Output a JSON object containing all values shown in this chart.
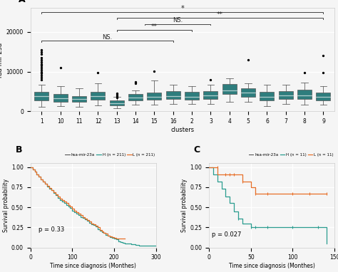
{
  "title_A": "A",
  "title_B": "B",
  "title_C": "C",
  "clusters": [
    "1",
    "10",
    "11",
    "12",
    "13",
    "14",
    "15",
    "16",
    "2",
    "3",
    "4",
    "5",
    "6",
    "7",
    "8",
    "9"
  ],
  "box_color": "#2e7d7d",
  "box_medians": [
    3800,
    3400,
    3100,
    3900,
    2100,
    3500,
    3700,
    3900,
    3700,
    4100,
    5300,
    4800,
    3700,
    4100,
    4100,
    3700
  ],
  "box_q1": [
    2700,
    2500,
    2400,
    2900,
    1500,
    2700,
    2900,
    3100,
    2900,
    3100,
    4400,
    3700,
    2800,
    3100,
    3100,
    2800
  ],
  "box_q3": [
    4900,
    4400,
    3900,
    4900,
    2800,
    4400,
    4700,
    5100,
    4900,
    5100,
    6900,
    5900,
    4900,
    5100,
    5400,
    4700
  ],
  "box_whislo": [
    1100,
    1300,
    1100,
    1500,
    800,
    1700,
    1700,
    1900,
    1900,
    1900,
    2400,
    2400,
    1400,
    1900,
    1700,
    1700
  ],
  "box_whishi": [
    6800,
    6300,
    5800,
    7000,
    3700,
    5300,
    7800,
    6800,
    6300,
    6800,
    8300,
    7000,
    6800,
    6800,
    7300,
    6300
  ],
  "outliers": {
    "0": [
      15500,
      15000,
      14500,
      13500,
      13000,
      12500,
      12000,
      11500,
      11000,
      10500,
      10000,
      9500,
      9000,
      8500,
      8000
    ],
    "1": [
      11000
    ],
    "2": [],
    "3": [
      9800
    ],
    "4": [
      4500,
      4200,
      3800,
      3500
    ],
    "5": [
      7500,
      7000
    ],
    "6": [
      10200
    ],
    "7": [],
    "8": [],
    "9": [
      8000
    ],
    "10": [],
    "11": [
      13000
    ],
    "12": [],
    "13": [],
    "14": [
      9800
    ],
    "15": [
      14000,
      9800
    ]
  },
  "ylabel_A": "hsa-mir-23a",
  "xlabel_A": "clusters",
  "ylim_A": [
    0,
    26000
  ],
  "yticks_A": [
    0,
    10000,
    20000
  ],
  "ytick_labels_A": [
    "0",
    "10000",
    "20000"
  ],
  "green_color": "#2a9d8f",
  "orange_color": "#e76f28",
  "survival_B_green_x": [
    0,
    5,
    10,
    15,
    20,
    25,
    30,
    35,
    40,
    45,
    50,
    55,
    60,
    65,
    70,
    75,
    80,
    85,
    90,
    95,
    100,
    105,
    110,
    115,
    120,
    125,
    130,
    135,
    140,
    145,
    150,
    155,
    160,
    165,
    170,
    175,
    180,
    185,
    190,
    195,
    200,
    205,
    210,
    215,
    220,
    225,
    230,
    240,
    250,
    260,
    280,
    300
  ],
  "survival_B_green_y": [
    1.0,
    0.97,
    0.94,
    0.91,
    0.88,
    0.85,
    0.82,
    0.79,
    0.76,
    0.73,
    0.71,
    0.68,
    0.65,
    0.62,
    0.59,
    0.57,
    0.55,
    0.53,
    0.51,
    0.49,
    0.46,
    0.44,
    0.42,
    0.4,
    0.38,
    0.37,
    0.35,
    0.33,
    0.31,
    0.29,
    0.28,
    0.26,
    0.23,
    0.21,
    0.19,
    0.18,
    0.16,
    0.15,
    0.13,
    0.12,
    0.11,
    0.1,
    0.08,
    0.07,
    0.06,
    0.05,
    0.05,
    0.04,
    0.03,
    0.02,
    0.02,
    0.02
  ],
  "survival_B_orange_x": [
    0,
    5,
    10,
    15,
    20,
    25,
    30,
    35,
    40,
    45,
    50,
    55,
    60,
    65,
    70,
    75,
    80,
    85,
    90,
    95,
    100,
    105,
    110,
    115,
    120,
    125,
    130,
    135,
    140,
    145,
    150,
    155,
    160,
    165,
    170,
    175,
    180,
    185,
    190,
    195,
    200,
    205,
    210,
    215,
    220,
    225
  ],
  "survival_B_orange_y": [
    1.0,
    0.97,
    0.94,
    0.91,
    0.88,
    0.85,
    0.82,
    0.79,
    0.77,
    0.74,
    0.71,
    0.69,
    0.66,
    0.63,
    0.61,
    0.59,
    0.57,
    0.55,
    0.53,
    0.51,
    0.48,
    0.46,
    0.44,
    0.42,
    0.4,
    0.38,
    0.36,
    0.34,
    0.32,
    0.3,
    0.29,
    0.27,
    0.25,
    0.22,
    0.2,
    0.18,
    0.17,
    0.15,
    0.14,
    0.13,
    0.12,
    0.11,
    0.11,
    0.11,
    0.11,
    0.11
  ],
  "pval_B": "p = 0.33",
  "legend_B": "hsa-mir-23a",
  "legend_B_H": "H (n = 211)",
  "legend_B_L": "L (n = 211)",
  "xlabel_B": "Time since diagnosis (Monthes)",
  "ylabel_B": "Survival probability",
  "xlim_B": [
    0,
    300
  ],
  "xticks_B": [
    0,
    100,
    200,
    300
  ],
  "survival_C_green_x": [
    0,
    5,
    10,
    15,
    20,
    25,
    30,
    35,
    40,
    45,
    50,
    55,
    60,
    70,
    100,
    130,
    140
  ],
  "survival_C_green_y": [
    1.0,
    0.91,
    0.82,
    0.73,
    0.63,
    0.55,
    0.45,
    0.36,
    0.3,
    0.3,
    0.25,
    0.25,
    0.25,
    0.25,
    0.25,
    0.25,
    0.05
  ],
  "survival_C_orange_x": [
    0,
    5,
    10,
    15,
    20,
    25,
    30,
    35,
    40,
    45,
    50,
    55,
    60,
    70,
    100,
    140
  ],
  "survival_C_orange_y": [
    1.0,
    1.0,
    0.91,
    0.91,
    0.91,
    0.91,
    0.91,
    0.91,
    0.82,
    0.82,
    0.75,
    0.67,
    0.67,
    0.67,
    0.67,
    0.67
  ],
  "pval_C": "p = 0.027",
  "legend_C": "hsa-mir-23a",
  "legend_C_H": "H (n = 11)",
  "legend_C_L": "L (n = 11)",
  "xlabel_C": "Time since diagnosis (Monthes)",
  "ylabel_C": "Survival probability",
  "xlim_C": [
    0,
    150
  ],
  "xticks_C": [
    0,
    50,
    100,
    150
  ],
  "bg_color": "#f5f5f5",
  "grid_color": "#ffffff",
  "spine_color": "#cccccc"
}
